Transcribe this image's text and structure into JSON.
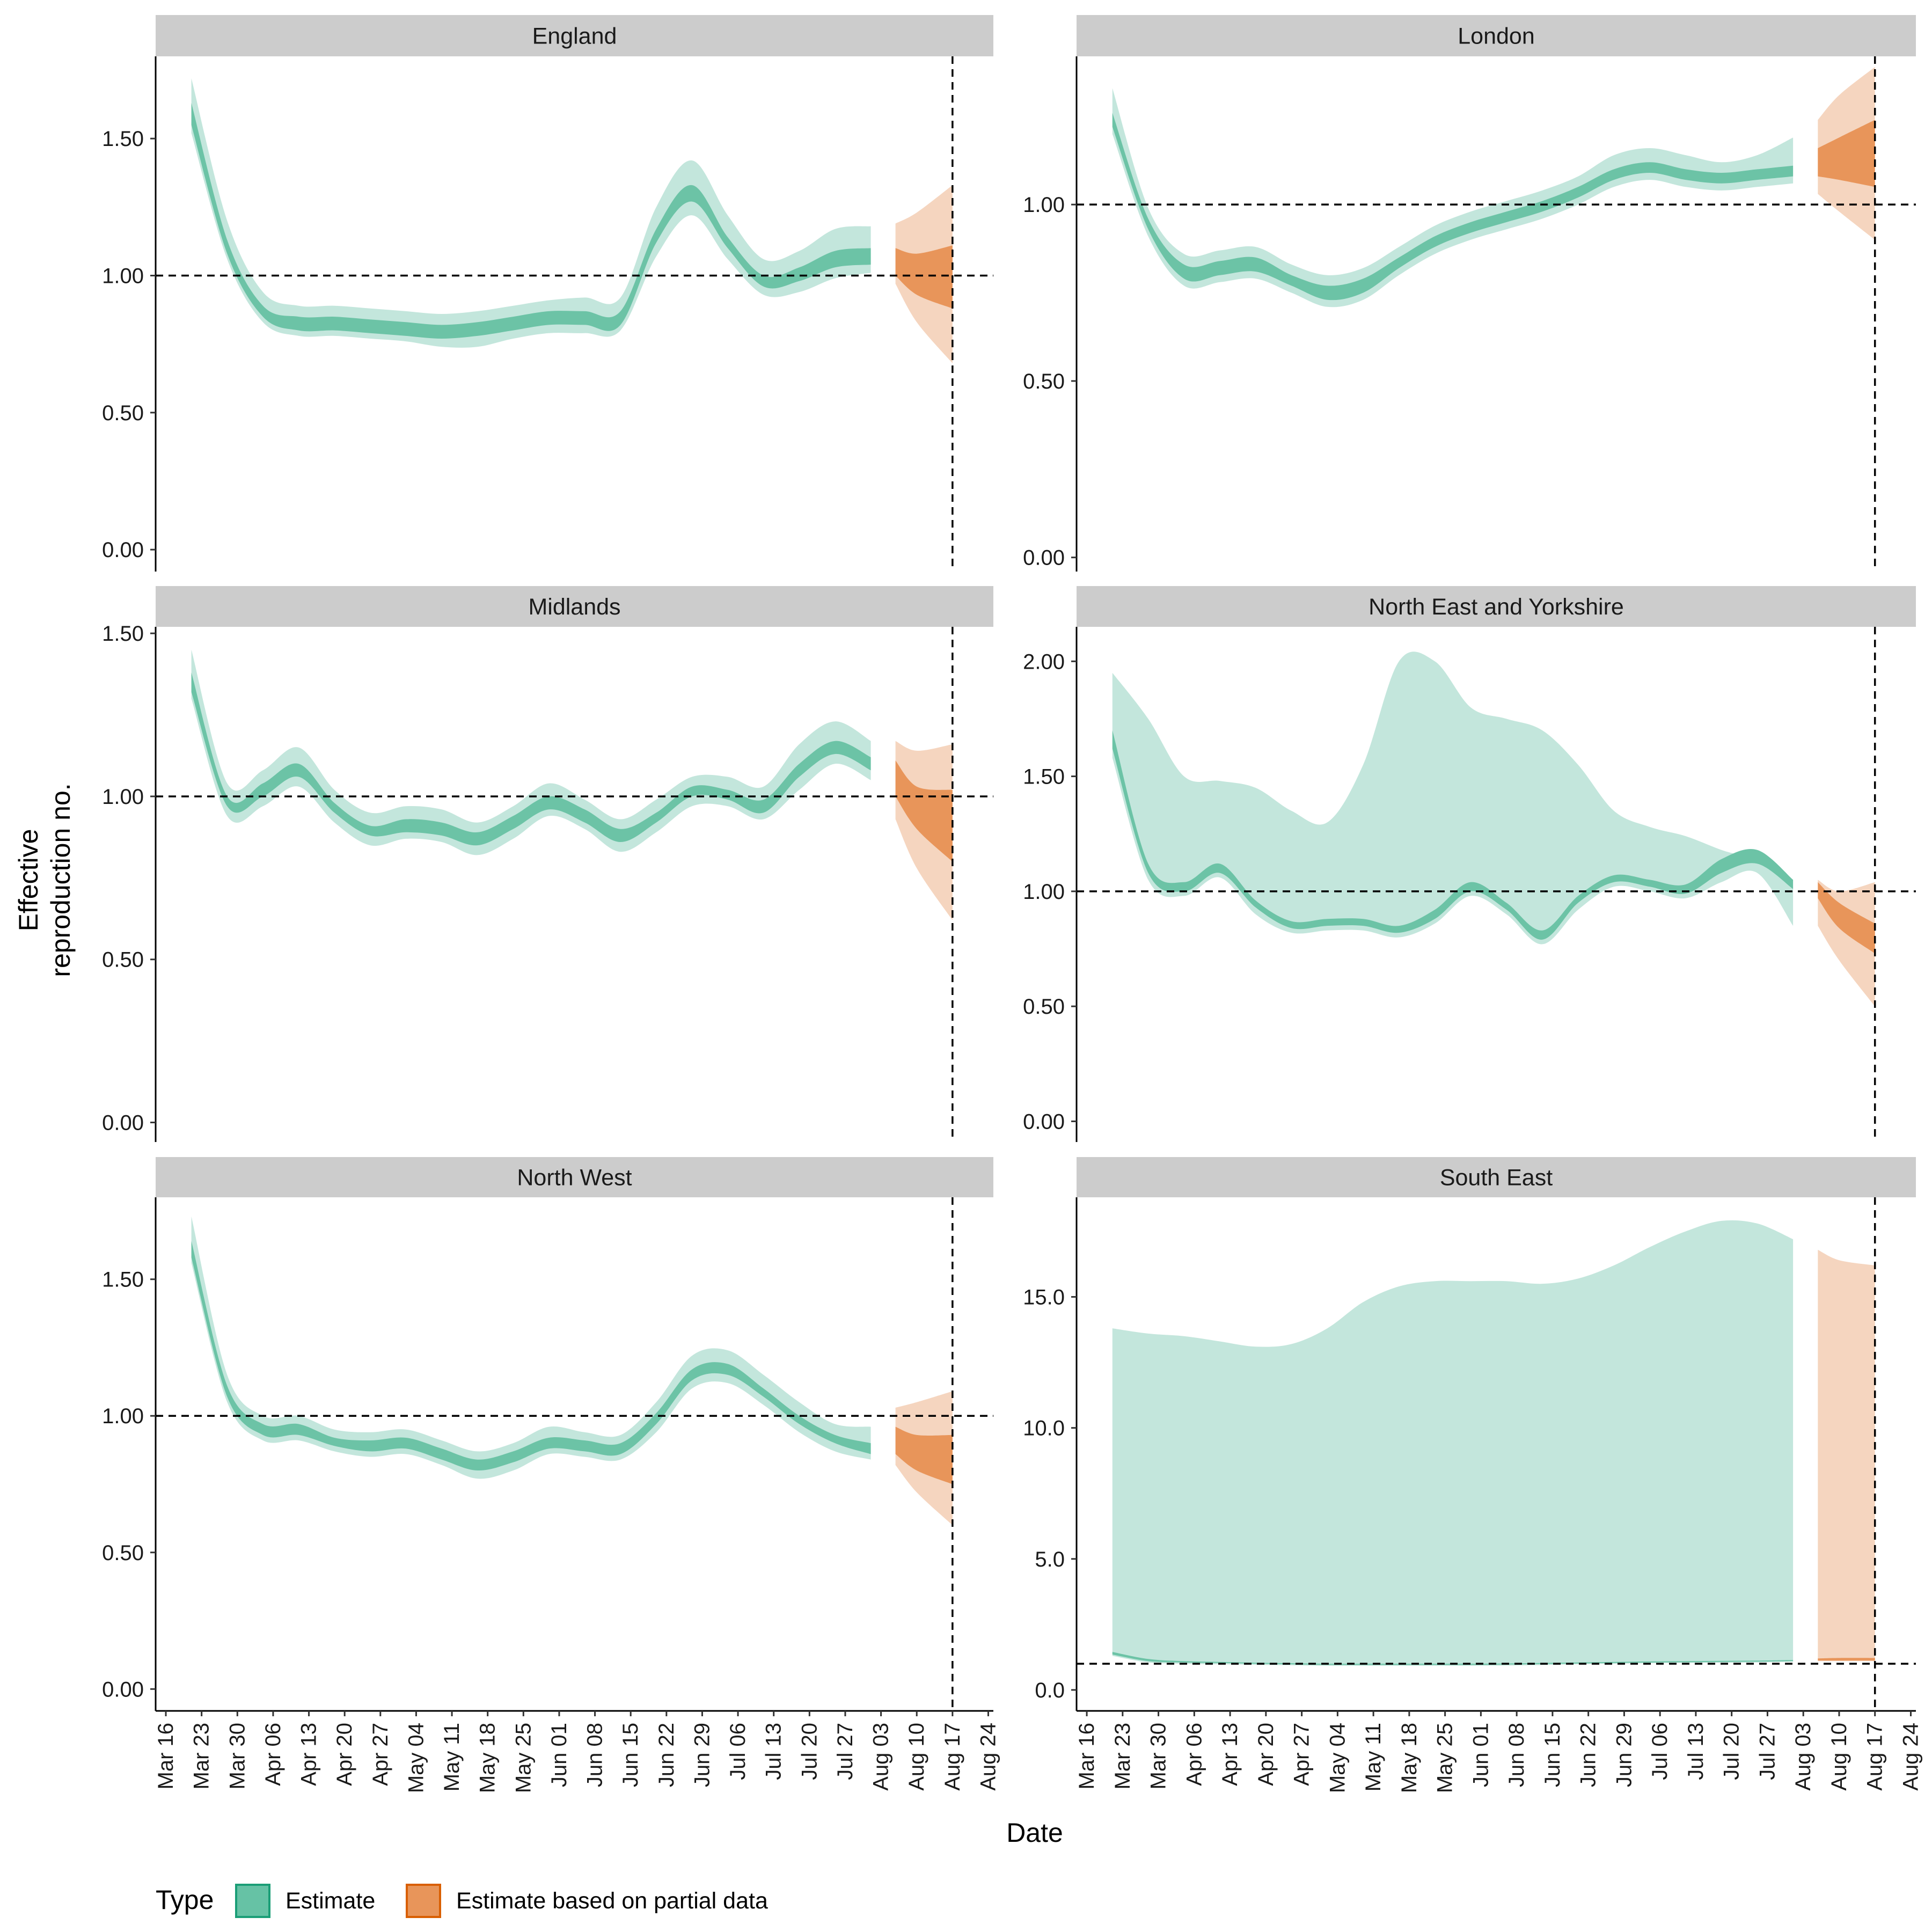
{
  "figure": {
    "xlabel": "Date",
    "ylabel_line1": "Effective",
    "ylabel_line2": "reproduction no.",
    "legend": {
      "title": "Type",
      "items": [
        {
          "label": "Estimate",
          "fill": "#66c2a5",
          "stroke": "#1b9e77"
        },
        {
          "label": "Estimate based on partial data",
          "fill": "#e8955a",
          "stroke": "#d95f02"
        }
      ]
    },
    "colors": {
      "estimate_inner": "#6cc3a6",
      "estimate_outer": "#c3e6dc",
      "partial_inner": "#e8955a",
      "partial_outer": "#f5d5bf",
      "strip_bg": "#cccccc"
    }
  },
  "chart_data": [
    {
      "type": "area",
      "title": "England",
      "x_dates": [
        "2020-03-21",
        "2020-03-28",
        "2020-04-04",
        "2020-04-11",
        "2020-04-18",
        "2020-04-25",
        "2020-05-02",
        "2020-05-09",
        "2020-05-16",
        "2020-05-23",
        "2020-05-30",
        "2020-06-06",
        "2020-06-13",
        "2020-06-20",
        "2020-06-27",
        "2020-07-04",
        "2020-07-11",
        "2020-07-18",
        "2020-07-25",
        "2020-08-01",
        "2020-08-05",
        "2020-08-10",
        "2020-08-17"
      ],
      "x_ticks": [
        "Mar 16",
        "Mar 23",
        "Mar 30",
        "Apr 06",
        "Apr 13",
        "Apr 20",
        "Apr 27",
        "May 04",
        "May 11",
        "May 18",
        "May 25",
        "Jun 01",
        "Jun 08",
        "Jun 15",
        "Jun 22",
        "Jun 29",
        "Jul 06",
        "Jul 13",
        "Jul 20",
        "Jul 27",
        "Aug 03",
        "Aug 10",
        "Aug 17",
        "Aug 24"
      ],
      "xlim": [
        "2020-03-14",
        "2020-08-25"
      ],
      "ylim": [
        -0.08,
        1.8
      ],
      "y_ticks": [
        0,
        0.5,
        1.0,
        1.5
      ],
      "y_tick_labels": [
        "0.00",
        "0.50",
        "1.00",
        "1.50"
      ],
      "reference_y": 1.0,
      "vline_date": "2020-08-17",
      "partial_start_index": 20,
      "outer_lower": [
        1.52,
        1.06,
        0.83,
        0.78,
        0.78,
        0.77,
        0.76,
        0.74,
        0.74,
        0.77,
        0.79,
        0.79,
        0.8,
        1.07,
        1.22,
        1.06,
        0.93,
        0.94,
        0.99,
        1.01,
        0.97,
        0.83,
        0.68
      ],
      "inner_lower": [
        1.55,
        1.08,
        0.85,
        0.8,
        0.8,
        0.79,
        0.78,
        0.77,
        0.78,
        0.8,
        0.82,
        0.82,
        0.82,
        1.12,
        1.27,
        1.1,
        0.96,
        0.98,
        1.03,
        1.04,
        1.0,
        0.93,
        0.88
      ],
      "inner_upper": [
        1.63,
        1.13,
        0.89,
        0.85,
        0.85,
        0.84,
        0.83,
        0.82,
        0.83,
        0.85,
        0.87,
        0.87,
        0.87,
        1.17,
        1.33,
        1.14,
        1.0,
        1.03,
        1.09,
        1.1,
        1.1,
        1.08,
        1.11
      ],
      "outer_upper": [
        1.72,
        1.2,
        0.94,
        0.89,
        0.89,
        0.88,
        0.87,
        0.86,
        0.87,
        0.89,
        0.91,
        0.92,
        0.92,
        1.25,
        1.42,
        1.22,
        1.06,
        1.09,
        1.17,
        1.18,
        1.19,
        1.23,
        1.33
      ]
    },
    {
      "type": "area",
      "title": "London",
      "x_dates": [
        "2020-03-21",
        "2020-03-28",
        "2020-04-04",
        "2020-04-11",
        "2020-04-18",
        "2020-04-25",
        "2020-05-02",
        "2020-05-09",
        "2020-05-16",
        "2020-05-23",
        "2020-05-30",
        "2020-06-06",
        "2020-06-13",
        "2020-06-20",
        "2020-06-27",
        "2020-07-04",
        "2020-07-11",
        "2020-07-18",
        "2020-07-25",
        "2020-08-01",
        "2020-08-05",
        "2020-08-10",
        "2020-08-17"
      ],
      "x_ticks": [
        "Mar 16",
        "Mar 23",
        "Mar 30",
        "Apr 06",
        "Apr 13",
        "Apr 20",
        "Apr 27",
        "May 04",
        "May 11",
        "May 18",
        "May 25",
        "Jun 01",
        "Jun 08",
        "Jun 15",
        "Jun 22",
        "Jun 29",
        "Jul 06",
        "Jul 13",
        "Jul 20",
        "Jul 27",
        "Aug 03",
        "Aug 10",
        "Aug 17",
        "Aug 24"
      ],
      "xlim": [
        "2020-03-14",
        "2020-08-25"
      ],
      "ylim": [
        -0.04,
        1.42
      ],
      "y_ticks": [
        0,
        0.5,
        1.0
      ],
      "y_tick_labels": [
        "0.00",
        "0.50",
        "1.00"
      ],
      "reference_y": 1.0,
      "vline_date": "2020-08-17",
      "partial_start_index": 20,
      "outer_lower": [
        1.2,
        0.91,
        0.77,
        0.78,
        0.79,
        0.75,
        0.71,
        0.73,
        0.8,
        0.86,
        0.9,
        0.93,
        0.96,
        1.0,
        1.05,
        1.07,
        1.05,
        1.04,
        1.05,
        1.06,
        1.03,
        0.98,
        0.9
      ],
      "inner_lower": [
        1.22,
        0.93,
        0.79,
        0.8,
        0.81,
        0.77,
        0.73,
        0.75,
        0.82,
        0.88,
        0.92,
        0.95,
        0.98,
        1.02,
        1.07,
        1.09,
        1.07,
        1.06,
        1.07,
        1.08,
        1.08,
        1.07,
        1.05
      ],
      "inner_upper": [
        1.26,
        0.96,
        0.83,
        0.84,
        0.85,
        0.8,
        0.77,
        0.79,
        0.85,
        0.91,
        0.95,
        0.98,
        1.01,
        1.05,
        1.1,
        1.12,
        1.1,
        1.09,
        1.1,
        1.11,
        1.16,
        1.19,
        1.24
      ],
      "outer_upper": [
        1.33,
        0.99,
        0.86,
        0.87,
        0.88,
        0.83,
        0.8,
        0.82,
        0.88,
        0.94,
        0.98,
        1.01,
        1.04,
        1.08,
        1.14,
        1.16,
        1.14,
        1.12,
        1.14,
        1.19,
        1.24,
        1.31,
        1.39
      ]
    },
    {
      "type": "area",
      "title": "Midlands",
      "x_dates": [
        "2020-03-21",
        "2020-03-28",
        "2020-04-04",
        "2020-04-11",
        "2020-04-18",
        "2020-04-25",
        "2020-05-02",
        "2020-05-09",
        "2020-05-16",
        "2020-05-23",
        "2020-05-30",
        "2020-06-06",
        "2020-06-13",
        "2020-06-20",
        "2020-06-27",
        "2020-07-04",
        "2020-07-11",
        "2020-07-18",
        "2020-07-25",
        "2020-08-01",
        "2020-08-05",
        "2020-08-10",
        "2020-08-17"
      ],
      "x_ticks": [
        "Mar 16",
        "Mar 23",
        "Mar 30",
        "Apr 06",
        "Apr 13",
        "Apr 20",
        "Apr 27",
        "May 04",
        "May 11",
        "May 18",
        "May 25",
        "Jun 01",
        "Jun 08",
        "Jun 15",
        "Jun 22",
        "Jun 29",
        "Jul 06",
        "Jul 13",
        "Jul 20",
        "Jul 27",
        "Aug 03",
        "Aug 10",
        "Aug 17",
        "Aug 24"
      ],
      "xlim": [
        "2020-03-14",
        "2020-08-25"
      ],
      "ylim": [
        -0.06,
        1.52
      ],
      "y_ticks": [
        0,
        0.5,
        1.0,
        1.5
      ],
      "y_tick_labels": [
        "0.00",
        "0.50",
        "1.00",
        "1.50"
      ],
      "reference_y": 1.0,
      "vline_date": "2020-08-17",
      "partial_start_index": 20,
      "outer_lower": [
        1.3,
        0.94,
        0.97,
        1.03,
        0.92,
        0.85,
        0.87,
        0.86,
        0.82,
        0.87,
        0.94,
        0.9,
        0.83,
        0.89,
        0.97,
        0.97,
        0.93,
        1.02,
        1.1,
        1.05,
        0.93,
        0.78,
        0.62
      ],
      "inner_lower": [
        1.32,
        0.97,
        1.0,
        1.06,
        0.95,
        0.88,
        0.89,
        0.88,
        0.85,
        0.9,
        0.96,
        0.92,
        0.86,
        0.92,
        1.0,
        0.99,
        0.95,
        1.06,
        1.13,
        1.08,
        1.0,
        0.9,
        0.8
      ],
      "inner_upper": [
        1.38,
        1.0,
        1.04,
        1.1,
        0.98,
        0.91,
        0.93,
        0.92,
        0.89,
        0.94,
        1.0,
        0.96,
        0.9,
        0.95,
        1.03,
        1.02,
        0.99,
        1.1,
        1.17,
        1.12,
        1.11,
        1.03,
        1.02
      ],
      "outer_upper": [
        1.45,
        1.04,
        1.08,
        1.15,
        1.02,
        0.95,
        0.97,
        0.96,
        0.92,
        0.97,
        1.04,
        0.99,
        0.93,
        0.99,
        1.06,
        1.06,
        1.03,
        1.16,
        1.23,
        1.17,
        1.17,
        1.14,
        1.16
      ]
    },
    {
      "type": "area",
      "title": "North East and Yorkshire",
      "x_dates": [
        "2020-03-21",
        "2020-03-28",
        "2020-04-04",
        "2020-04-11",
        "2020-04-18",
        "2020-04-25",
        "2020-05-02",
        "2020-05-09",
        "2020-05-16",
        "2020-05-23",
        "2020-05-30",
        "2020-06-06",
        "2020-06-13",
        "2020-06-20",
        "2020-06-27",
        "2020-07-04",
        "2020-07-11",
        "2020-07-18",
        "2020-07-25",
        "2020-08-01",
        "2020-08-05",
        "2020-08-10",
        "2020-08-17"
      ],
      "x_ticks": [
        "Mar 16",
        "Mar 23",
        "Mar 30",
        "Apr 06",
        "Apr 13",
        "Apr 20",
        "Apr 27",
        "May 04",
        "May 11",
        "May 18",
        "May 25",
        "Jun 01",
        "Jun 08",
        "Jun 15",
        "Jun 22",
        "Jun 29",
        "Jul 06",
        "Jul 13",
        "Jul 20",
        "Jul 27",
        "Aug 03",
        "Aug 10",
        "Aug 17",
        "Aug 24"
      ],
      "xlim": [
        "2020-03-14",
        "2020-08-25"
      ],
      "ylim": [
        -0.09,
        2.15
      ],
      "y_ticks": [
        0,
        0.5,
        1.0,
        1.5,
        2.0
      ],
      "y_tick_labels": [
        "0.00",
        "0.50",
        "1.00",
        "1.50",
        "2.00"
      ],
      "reference_y": 1.0,
      "vline_date": "2020-08-17",
      "partial_start_index": 20,
      "outer_lower": [
        1.58,
        1.05,
        0.98,
        1.06,
        0.9,
        0.82,
        0.83,
        0.83,
        0.8,
        0.86,
        0.98,
        0.9,
        0.77,
        0.92,
        1.02,
        1.0,
        0.97,
        1.04,
        1.08,
        0.85,
        0.85,
        0.7,
        0.5
      ],
      "inner_lower": [
        1.62,
        1.08,
        1.0,
        1.08,
        0.93,
        0.84,
        0.85,
        0.85,
        0.82,
        0.88,
        1.0,
        0.92,
        0.79,
        0.95,
        1.04,
        1.02,
        0.99,
        1.08,
        1.12,
        1.01,
        0.97,
        0.84,
        0.73
      ],
      "inner_upper": [
        1.7,
        1.12,
        1.04,
        1.12,
        0.96,
        0.87,
        0.88,
        0.88,
        0.85,
        0.92,
        1.04,
        0.95,
        0.83,
        0.98,
        1.07,
        1.05,
        1.03,
        1.14,
        1.18,
        1.05,
        1.04,
        0.95,
        0.86
      ],
      "outer_upper": [
        1.95,
        1.75,
        1.5,
        1.48,
        1.45,
        1.35,
        1.3,
        1.55,
        2.0,
        2.0,
        1.8,
        1.75,
        1.7,
        1.55,
        1.35,
        1.28,
        1.24,
        1.18,
        1.13,
        1.02,
        1.05,
        1.0,
        1.04
      ]
    },
    {
      "type": "area",
      "title": "North West",
      "x_dates": [
        "2020-03-21",
        "2020-03-28",
        "2020-04-04",
        "2020-04-11",
        "2020-04-18",
        "2020-04-25",
        "2020-05-02",
        "2020-05-09",
        "2020-05-16",
        "2020-05-23",
        "2020-05-30",
        "2020-06-06",
        "2020-06-13",
        "2020-06-20",
        "2020-06-27",
        "2020-07-04",
        "2020-07-11",
        "2020-07-18",
        "2020-07-25",
        "2020-08-01",
        "2020-08-05",
        "2020-08-10",
        "2020-08-17"
      ],
      "x_ticks": [
        "Mar 16",
        "Mar 23",
        "Mar 30",
        "Apr 06",
        "Apr 13",
        "Apr 20",
        "Apr 27",
        "May 04",
        "May 11",
        "May 18",
        "May 25",
        "Jun 01",
        "Jun 08",
        "Jun 15",
        "Jun 22",
        "Jun 29",
        "Jul 06",
        "Jul 13",
        "Jul 20",
        "Jul 27",
        "Aug 03",
        "Aug 10",
        "Aug 17",
        "Aug 24"
      ],
      "xlim": [
        "2020-03-14",
        "2020-08-25"
      ],
      "ylim": [
        -0.08,
        1.8
      ],
      "y_ticks": [
        0,
        0.5,
        1.0,
        1.5
      ],
      "y_tick_labels": [
        "0.00",
        "0.50",
        "1.00",
        "1.50"
      ],
      "reference_y": 1.0,
      "vline_date": "2020-08-17",
      "partial_start_index": 20,
      "outer_lower": [
        1.56,
        1.05,
        0.91,
        0.91,
        0.87,
        0.85,
        0.86,
        0.82,
        0.77,
        0.8,
        0.86,
        0.85,
        0.84,
        0.94,
        1.1,
        1.12,
        1.04,
        0.94,
        0.87,
        0.84,
        0.82,
        0.72,
        0.6
      ],
      "inner_lower": [
        1.58,
        1.07,
        0.93,
        0.93,
        0.89,
        0.87,
        0.88,
        0.84,
        0.8,
        0.83,
        0.88,
        0.87,
        0.86,
        0.97,
        1.13,
        1.15,
        1.07,
        0.97,
        0.9,
        0.86,
        0.86,
        0.8,
        0.75
      ],
      "inner_upper": [
        1.64,
        1.11,
        0.97,
        0.97,
        0.92,
        0.91,
        0.92,
        0.88,
        0.84,
        0.87,
        0.92,
        0.91,
        0.9,
        1.01,
        1.17,
        1.19,
        1.1,
        1.0,
        0.93,
        0.9,
        0.96,
        0.93,
        0.93
      ],
      "outer_upper": [
        1.73,
        1.15,
        1.0,
        1.0,
        0.95,
        0.94,
        0.95,
        0.91,
        0.87,
        0.9,
        0.96,
        0.94,
        0.93,
        1.05,
        1.22,
        1.24,
        1.15,
        1.05,
        0.97,
        0.96,
        1.03,
        1.05,
        1.09
      ]
    },
    {
      "type": "area",
      "title": "South East",
      "x_dates": [
        "2020-03-21",
        "2020-03-28",
        "2020-04-04",
        "2020-04-11",
        "2020-04-18",
        "2020-04-25",
        "2020-05-02",
        "2020-05-09",
        "2020-05-16",
        "2020-05-23",
        "2020-05-30",
        "2020-06-06",
        "2020-06-13",
        "2020-06-20",
        "2020-06-27",
        "2020-07-04",
        "2020-07-11",
        "2020-07-18",
        "2020-07-25",
        "2020-08-01",
        "2020-08-05",
        "2020-08-10",
        "2020-08-17"
      ],
      "x_ticks": [
        "Mar 16",
        "Mar 23",
        "Mar 30",
        "Apr 06",
        "Apr 13",
        "Apr 20",
        "Apr 27",
        "May 04",
        "May 11",
        "May 18",
        "May 25",
        "Jun 01",
        "Jun 08",
        "Jun 15",
        "Jun 22",
        "Jun 29",
        "Jul 06",
        "Jul 13",
        "Jul 20",
        "Jul 27",
        "Aug 03",
        "Aug 10",
        "Aug 17",
        "Aug 24"
      ],
      "xlim": [
        "2020-03-14",
        "2020-08-25"
      ],
      "ylim": [
        -0.8,
        18.8
      ],
      "y_ticks": [
        0,
        5,
        10,
        15
      ],
      "y_tick_labels": [
        "0.0",
        "5.0",
        "10.0",
        "15.0"
      ],
      "reference_y": 1.0,
      "vline_date": "2020-08-17",
      "partial_start_index": 20,
      "outer_lower": [
        1.3,
        1.05,
        1.0,
        0.98,
        0.96,
        0.94,
        0.92,
        0.92,
        0.92,
        0.92,
        0.92,
        0.93,
        0.95,
        0.98,
        1.0,
        1.02,
        1.03,
        1.04,
        1.05,
        1.08,
        1.1,
        1.1,
        1.1
      ],
      "inner_lower": [
        1.35,
        1.1,
        1.05,
        1.03,
        1.0,
        0.98,
        0.96,
        0.96,
        0.96,
        0.96,
        0.96,
        0.97,
        0.99,
        1.01,
        1.03,
        1.05,
        1.06,
        1.07,
        1.08,
        1.1,
        1.12,
        1.12,
        1.12
      ],
      "inner_upper": [
        1.45,
        1.18,
        1.1,
        1.07,
        1.04,
        1.02,
        1.0,
        1.0,
        1.0,
        1.0,
        1.0,
        1.01,
        1.03,
        1.05,
        1.07,
        1.09,
        1.1,
        1.11,
        1.12,
        1.14,
        1.2,
        1.22,
        1.22
      ],
      "outer_upper": [
        13.8,
        13.6,
        13.5,
        13.3,
        13.1,
        13.2,
        13.8,
        14.8,
        15.4,
        15.6,
        15.6,
        15.6,
        15.5,
        15.7,
        16.2,
        16.9,
        17.5,
        17.9,
        17.8,
        17.2,
        16.8,
        16.4,
        16.2
      ]
    }
  ]
}
